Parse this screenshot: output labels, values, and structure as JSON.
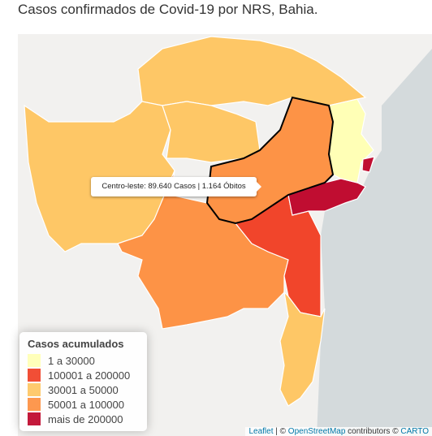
{
  "title": "Casos confirmados de Covid-19 por NRS, Bahia.",
  "tooltip": "Centro-leste: 89.640 Casos | 1.164 Óbitos",
  "legend": {
    "title": "Casos acumulados",
    "items": [
      {
        "label": "1 a 30000",
        "color": "#ffffb2"
      },
      {
        "label": "100001 a 200000",
        "color": "#f03b20"
      },
      {
        "label": "30001 a 50000",
        "color": "#fec45e"
      },
      {
        "label": "50001 a 100000",
        "color": "#fd8d3c"
      },
      {
        "label": "mais de 200000",
        "color": "#bd0026"
      }
    ]
  },
  "attribution": {
    "leaflet": "Leaflet",
    "sep": " | © ",
    "osm": "OpenStreetMap",
    "contrib": " contributors © ",
    "carto": "CARTO"
  }
}
